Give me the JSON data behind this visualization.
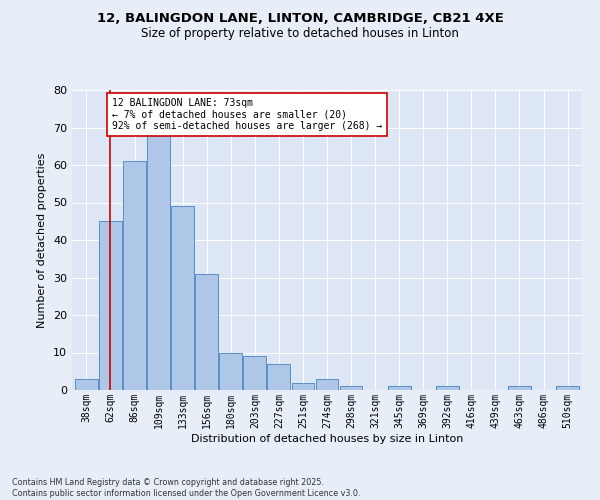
{
  "title_line1": "12, BALINGDON LANE, LINTON, CAMBRIDGE, CB21 4XE",
  "title_line2": "Size of property relative to detached houses in Linton",
  "xlabel": "Distribution of detached houses by size in Linton",
  "ylabel": "Number of detached properties",
  "bar_color": "#aec6e8",
  "bar_edge_color": "#5a8fc4",
  "background_color": "#dce6f5",
  "fig_background_color": "#e8eef8",
  "grid_color": "#ffffff",
  "categories": [
    "38sqm",
    "62sqm",
    "86sqm",
    "109sqm",
    "133sqm",
    "156sqm",
    "180sqm",
    "203sqm",
    "227sqm",
    "251sqm",
    "274sqm",
    "298sqm",
    "321sqm",
    "345sqm",
    "369sqm",
    "392sqm",
    "416sqm",
    "439sqm",
    "463sqm",
    "486sqm",
    "510sqm"
  ],
  "values": [
    3,
    45,
    61,
    68,
    49,
    31,
    10,
    9,
    7,
    2,
    3,
    1,
    0,
    1,
    0,
    1,
    0,
    0,
    1,
    0,
    1
  ],
  "ylim": [
    0,
    80
  ],
  "yticks": [
    0,
    10,
    20,
    30,
    40,
    50,
    60,
    70,
    80
  ],
  "red_line_x": 1.0,
  "annotation_text": "12 BALINGDON LANE: 73sqm\n← 7% of detached houses are smaller (20)\n92% of semi-detached houses are larger (268) →",
  "annotation_box_color": "#ffffff",
  "annotation_box_edge": "#cc0000",
  "footnote": "Contains HM Land Registry data © Crown copyright and database right 2025.\nContains public sector information licensed under the Open Government Licence v3.0."
}
